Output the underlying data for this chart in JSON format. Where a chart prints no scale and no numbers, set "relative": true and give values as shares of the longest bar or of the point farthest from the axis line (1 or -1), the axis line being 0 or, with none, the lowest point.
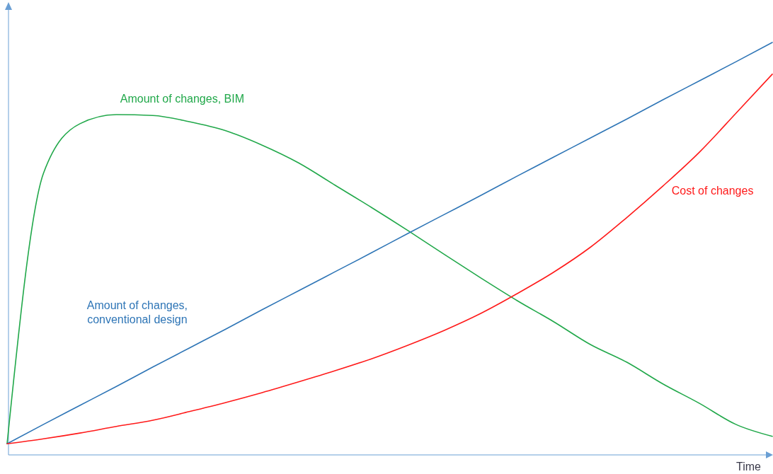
{
  "chart_data": {
    "type": "line",
    "relative": true,
    "xlabel": "Time",
    "marker": "none",
    "line_style": "solid",
    "categories": [
      null,
      null,
      null,
      null,
      null,
      null,
      null,
      null,
      null,
      null,
      null,
      null,
      null,
      null,
      null,
      null,
      null,
      null,
      null,
      null,
      null,
      null
    ],
    "series": [
      {
        "name": "Amount of changes, BIM",
        "color": "#21a84a",
        "values": [
          0.027,
          0.683,
          0.803,
          0.825,
          0.823,
          0.808,
          0.786,
          0.751,
          0.708,
          0.654,
          0.6,
          0.544,
          0.486,
          0.429,
          0.374,
          0.323,
          0.268,
          0.225,
          0.172,
          0.125,
          0.074,
          0.045
        ]
      },
      {
        "name": "Amount of changes, conventional design",
        "color": "#2e75b6",
        "values": [
          0.027,
          0.074,
          0.12,
          0.166,
          0.213,
          0.259,
          0.305,
          0.352,
          0.398,
          0.444,
          0.49,
          0.537,
          0.583,
          0.629,
          0.676,
          0.722,
          0.768,
          0.814,
          0.861,
          0.907,
          0.953,
          1.0
        ]
      },
      {
        "name": "Cost of changes",
        "color": "#ff1a1a",
        "values": [
          0.027,
          0.039,
          0.053,
          0.069,
          0.084,
          0.105,
          0.127,
          0.151,
          0.177,
          0.204,
          0.233,
          0.266,
          0.302,
          0.343,
          0.391,
          0.443,
          0.503,
          0.575,
          0.652,
          0.734,
          0.828,
          0.923
        ]
      }
    ]
  }
}
